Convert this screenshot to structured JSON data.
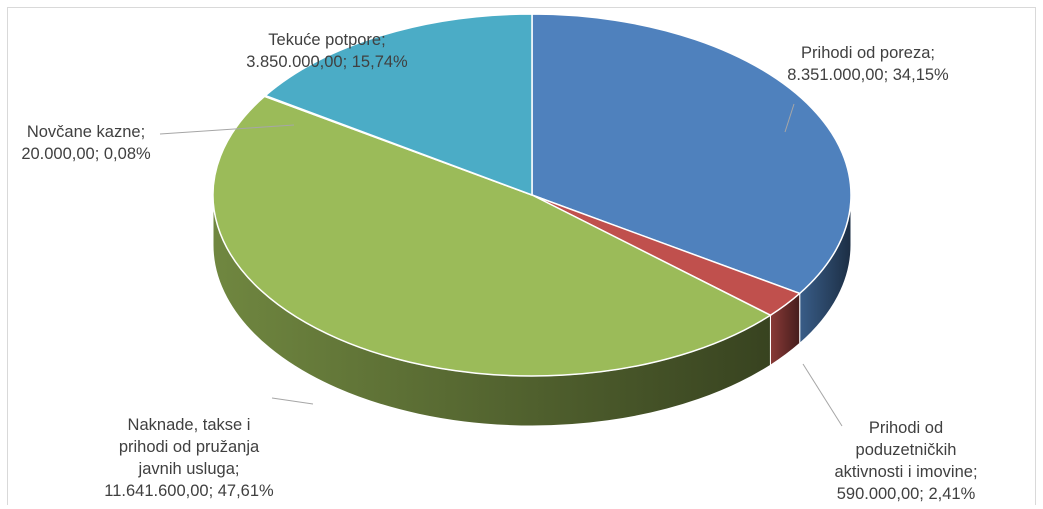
{
  "chart_data": {
    "type": "pie",
    "title": "",
    "slices": [
      {
        "name": "Prihodi od poreza",
        "value": 8351000.0,
        "percent": 34.15,
        "color": "#4f81bd",
        "label_lines": [
          "Prihodi od poreza;",
          "8.351.000,00; 34,15%"
        ]
      },
      {
        "name": "Prihodi od poduzetničkih aktivnosti i imovine",
        "value": 590000.0,
        "percent": 2.41,
        "color": "#c0504d",
        "label_lines": [
          "Prihodi od",
          "poduzetničkih",
          "aktivnosti i imovine;",
          "590.000,00; 2,41%"
        ]
      },
      {
        "name": "Naknade, takse i prihodi od pružanja javnih usluga",
        "value": 11641600.0,
        "percent": 47.61,
        "color": "#9bbb59",
        "label_lines": [
          "Naknade, takse i",
          "prihodi od pružanja",
          "javnih usluga;",
          "11.641.600,00; 47,61%"
        ]
      },
      {
        "name": "Novčane kazne",
        "value": 20000.0,
        "percent": 0.08,
        "color": "#8064a2",
        "label_lines": [
          "Novčane kazne;",
          "20.000,00; 0,08%"
        ]
      },
      {
        "name": "Tekuće potpore",
        "value": 3850000.0,
        "percent": 15.74,
        "color": "#4bacc6",
        "label_lines": [
          "Tekuće potpore;",
          "3.850.000,00; 15,74%"
        ]
      }
    ],
    "style": "3d-pie",
    "legend": "none"
  }
}
